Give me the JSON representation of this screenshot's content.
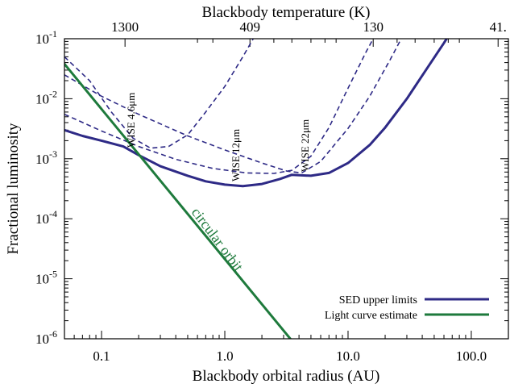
{
  "chart_data": {
    "type": "line",
    "xlabel": "Blackbody orbital radius (AU)",
    "ylabel": "Fractional luminosity",
    "top_xlabel": "Blackbody temperature (K)",
    "x_scale": "log",
    "y_scale": "log",
    "xlim": [
      0.05,
      200
    ],
    "ylim": [
      1e-06,
      0.1
    ],
    "x_tick_labels": [
      {
        "value": 0.1,
        "label": "0.1"
      },
      {
        "value": 1,
        "label": "1.0"
      },
      {
        "value": 10,
        "label": "10.0"
      },
      {
        "value": 100,
        "label": "100.0"
      }
    ],
    "y_tick_labels": [
      {
        "value": 1e-06,
        "base": "10",
        "exp": "-6"
      },
      {
        "value": 1e-05,
        "base": "10",
        "exp": "-5"
      },
      {
        "value": 0.0001,
        "base": "10",
        "exp": "-4"
      },
      {
        "value": 0.001,
        "base": "10",
        "exp": "-3"
      },
      {
        "value": 0.01,
        "base": "10",
        "exp": "-2"
      },
      {
        "value": 0.1,
        "base": "10",
        "exp": "-1"
      }
    ],
    "top_tick_labels": [
      {
        "radius": 0.155,
        "label": "1300"
      },
      {
        "radius": 1.6,
        "label": "409"
      },
      {
        "radius": 16,
        "label": "130"
      },
      {
        "radius": 165,
        "label": "41."
      }
    ],
    "series": [
      {
        "name": "SED upper limits",
        "color": "#2e2a86",
        "style": "solid",
        "points": [
          [
            0.05,
            0.003
          ],
          [
            0.07,
            0.0024
          ],
          [
            0.1,
            0.002
          ],
          [
            0.15,
            0.0016
          ],
          [
            0.2,
            0.00115
          ],
          [
            0.3,
            0.00075
          ],
          [
            0.5,
            0.00052
          ],
          [
            0.7,
            0.00042
          ],
          [
            1.0,
            0.00037
          ],
          [
            1.4,
            0.00035
          ],
          [
            2.0,
            0.00038
          ],
          [
            2.8,
            0.00046
          ],
          [
            3.5,
            0.00054
          ],
          [
            5.0,
            0.00052
          ],
          [
            7.0,
            0.00058
          ],
          [
            10,
            0.00085
          ],
          [
            15,
            0.0017
          ],
          [
            20,
            0.0033
          ],
          [
            30,
            0.01
          ],
          [
            45,
            0.035
          ],
          [
            60,
            0.085
          ],
          [
            65,
            0.11
          ]
        ]
      },
      {
        "name": "Light curve estimate",
        "color": "#1e7a3c",
        "style": "solid",
        "points": [
          [
            0.05,
            0.038
          ],
          [
            3.4,
            1e-06
          ]
        ]
      }
    ],
    "dashed_curves": [
      {
        "band": "WISE 4.6μm",
        "color": "#2e2a86",
        "points": [
          [
            0.05,
            0.05
          ],
          [
            0.08,
            0.02
          ],
          [
            0.12,
            0.006
          ],
          [
            0.18,
            0.0022
          ],
          [
            0.25,
            0.0015
          ],
          [
            0.35,
            0.0016
          ],
          [
            0.5,
            0.0025
          ],
          [
            0.7,
            0.006
          ],
          [
            1.0,
            0.016
          ],
          [
            1.4,
            0.05
          ],
          [
            1.7,
            0.1
          ]
        ]
      },
      {
        "band": "WISE 12μm",
        "color": "#2e2a86",
        "points": [
          [
            0.05,
            0.0055
          ],
          [
            0.1,
            0.0029
          ],
          [
            0.2,
            0.0016
          ],
          [
            0.4,
            0.00098
          ],
          [
            0.8,
            0.00069
          ],
          [
            1.5,
            0.00058
          ],
          [
            2.5,
            0.00057
          ],
          [
            3.5,
            0.00064
          ],
          [
            5,
            0.0011
          ],
          [
            7,
            0.0033
          ],
          [
            10,
            0.015
          ],
          [
            14,
            0.06
          ],
          [
            16,
            0.1
          ]
        ]
      },
      {
        "band": "WISE 22μm",
        "color": "#2e2a86",
        "points": [
          [
            0.05,
            0.025
          ],
          [
            0.1,
            0.011
          ],
          [
            0.2,
            0.0055
          ],
          [
            0.5,
            0.0024
          ],
          [
            1.0,
            0.0014
          ],
          [
            2.0,
            0.00085
          ],
          [
            3.2,
            0.00062
          ],
          [
            4.2,
            0.00058
          ],
          [
            6,
            0.0009
          ],
          [
            10,
            0.0032
          ],
          [
            15,
            0.011
          ],
          [
            22,
            0.045
          ],
          [
            27,
            0.1
          ]
        ]
      }
    ],
    "annotations": {
      "wise46": "WISE 4.6μm",
      "wise12": "WISE 12μm",
      "wise22": "WISE 22μm",
      "orbit": "circular orbit"
    },
    "legend": {
      "placement": "bottom-right",
      "entries": [
        {
          "label": "SED upper limits",
          "color": "#2e2a86"
        },
        {
          "label": "Light curve estimate",
          "color": "#1e7a3c"
        }
      ]
    },
    "grid": false
  }
}
